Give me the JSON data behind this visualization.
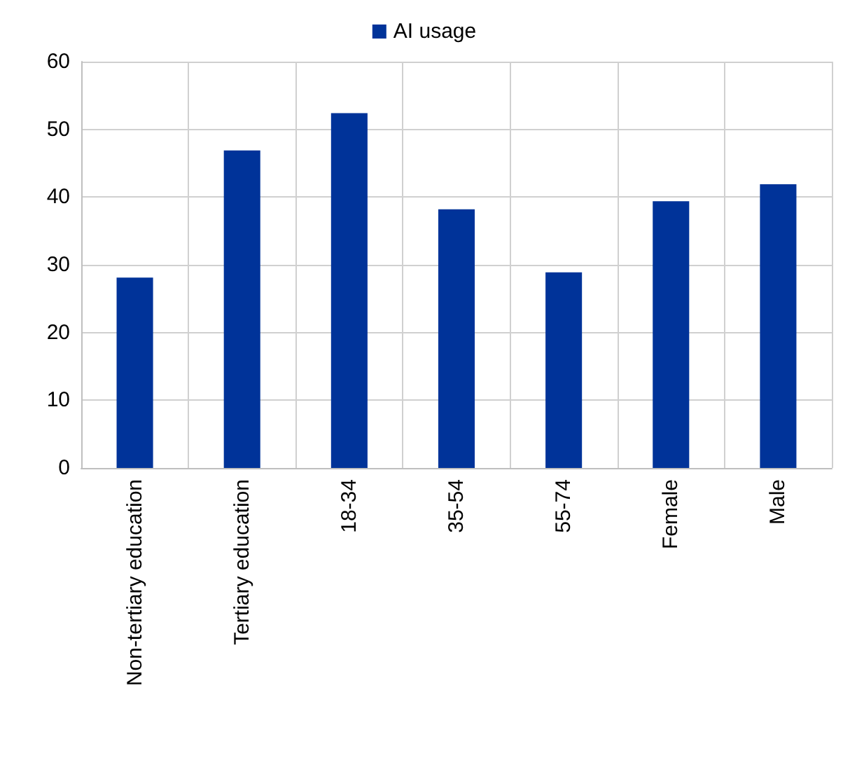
{
  "chart_data": {
    "type": "bar",
    "categories": [
      "Non-tertiary education",
      "Tertiary education",
      "18-34",
      "35-54",
      "55-74",
      "Female",
      "Male"
    ],
    "series": [
      {
        "name": "AI usage",
        "color": "#003399",
        "values": [
          28.1,
          46.9,
          52.4,
          38.2,
          28.9,
          39.4,
          41.9
        ]
      }
    ],
    "ylim": [
      0,
      60
    ],
    "yticks": [
      0,
      10,
      20,
      30,
      40,
      50,
      60
    ],
    "grid": true,
    "legend": "top"
  }
}
